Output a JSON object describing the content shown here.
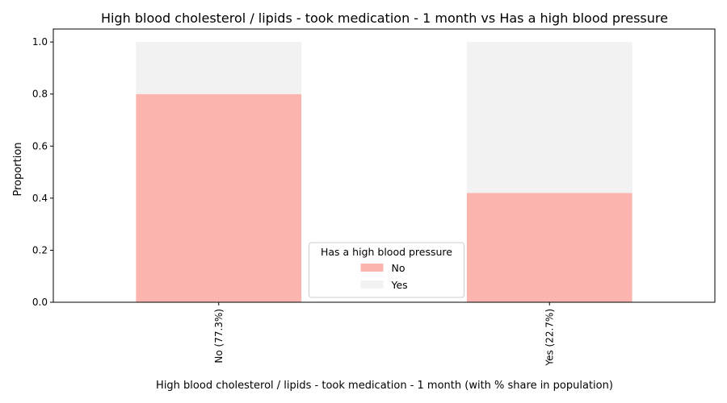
{
  "chart_data": {
    "type": "bar",
    "stacked": true,
    "title": "High blood cholesterol / lipids - took medication - 1 month vs Has a high blood pressure",
    "xlabel": "High blood cholesterol / lipids - took medication - 1 month (with % share in population)",
    "ylabel": "Proportion",
    "categories": [
      "No (77.3%)",
      "Yes (22.7%)"
    ],
    "series": [
      {
        "name": "No",
        "values": [
          0.8,
          0.42
        ],
        "color": "#fbb4ae"
      },
      {
        "name": "Yes",
        "values": [
          0.2,
          0.58
        ],
        "color": "#f2f2f2"
      }
    ],
    "ylim": [
      0,
      1.0
    ],
    "yticks": [
      "0.0",
      "0.2",
      "0.4",
      "0.6",
      "0.8",
      "1.0"
    ],
    "legend": {
      "title": "Has a high blood pressure",
      "position": "lower-center"
    },
    "grid": false
  }
}
